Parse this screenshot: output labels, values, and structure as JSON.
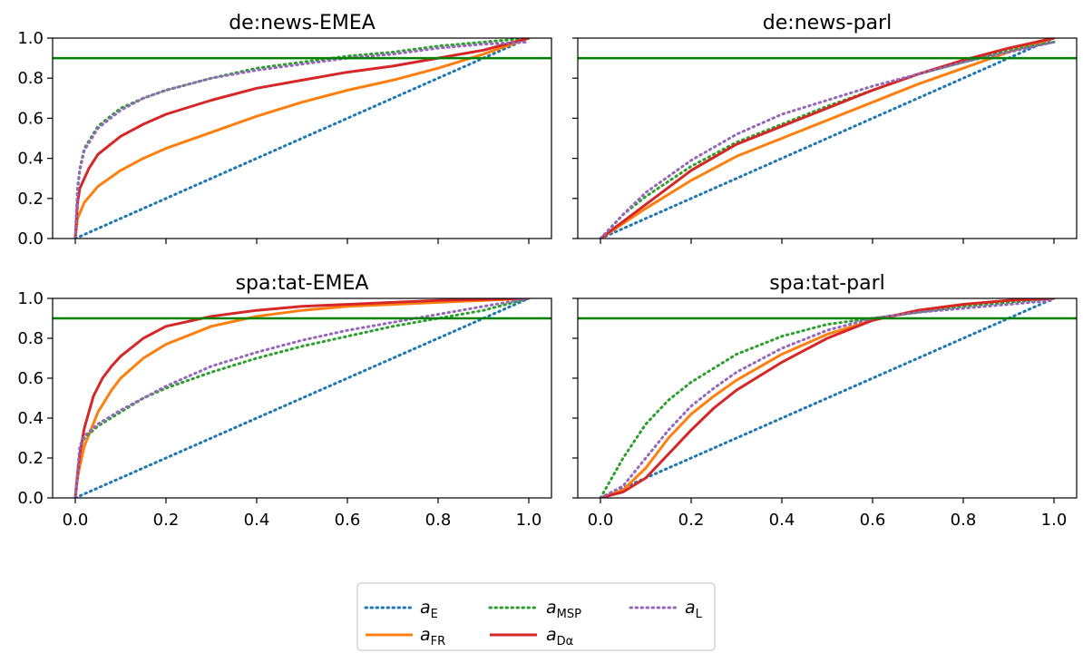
{
  "chart_data": [
    {
      "type": "line",
      "title": "de:news-EMEA",
      "xlim": [
        0,
        1
      ],
      "ylim": [
        0,
        1
      ],
      "x_ticks": [
        "0.0",
        "0.2",
        "0.4",
        "0.6",
        "0.8",
        "1.0"
      ],
      "y_ticks": [
        "0.0",
        "0.2",
        "0.4",
        "0.6",
        "0.8",
        "1.0"
      ],
      "hline": 0.9,
      "series": [
        {
          "name": "a_E",
          "style": "dotted",
          "color": "#1f77b4",
          "x": [
            0,
            1
          ],
          "y": [
            0,
            1
          ]
        },
        {
          "name": "a_FR",
          "style": "solid",
          "color": "#ff7f0e",
          "x": [
            0,
            0.005,
            0.02,
            0.05,
            0.1,
            0.15,
            0.2,
            0.3,
            0.4,
            0.5,
            0.6,
            0.7,
            0.8,
            0.9,
            0.95,
            1.0
          ],
          "y": [
            0,
            0.1,
            0.18,
            0.26,
            0.34,
            0.4,
            0.45,
            0.53,
            0.61,
            0.68,
            0.74,
            0.79,
            0.85,
            0.92,
            0.96,
            1.0
          ]
        },
        {
          "name": "a_MSP",
          "style": "dotted",
          "color": "#2ca02c",
          "x": [
            0,
            0.005,
            0.01,
            0.02,
            0.05,
            0.1,
            0.15,
            0.2,
            0.3,
            0.4,
            0.5,
            0.6,
            0.7,
            0.8,
            0.9,
            1.0
          ],
          "y": [
            0,
            0.25,
            0.35,
            0.45,
            0.56,
            0.65,
            0.7,
            0.74,
            0.8,
            0.85,
            0.88,
            0.91,
            0.93,
            0.96,
            0.98,
            1.0
          ]
        },
        {
          "name": "a_D",
          "style": "solid",
          "color": "#d62728",
          "x": [
            0,
            0.005,
            0.01,
            0.03,
            0.05,
            0.1,
            0.15,
            0.2,
            0.3,
            0.4,
            0.5,
            0.6,
            0.7,
            0.8,
            0.9,
            1.0
          ],
          "y": [
            0,
            0.18,
            0.25,
            0.35,
            0.42,
            0.51,
            0.57,
            0.62,
            0.69,
            0.75,
            0.79,
            0.83,
            0.86,
            0.9,
            0.94,
            1.0
          ]
        },
        {
          "name": "a_L",
          "style": "dotted",
          "color": "#9467bd",
          "x": [
            0,
            0.005,
            0.01,
            0.02,
            0.05,
            0.1,
            0.15,
            0.2,
            0.3,
            0.4,
            0.5,
            0.6,
            0.7,
            0.8,
            0.9,
            1.0
          ],
          "y": [
            0,
            0.24,
            0.34,
            0.44,
            0.55,
            0.64,
            0.7,
            0.74,
            0.8,
            0.84,
            0.87,
            0.9,
            0.92,
            0.95,
            0.97,
            0.98
          ]
        }
      ]
    },
    {
      "type": "line",
      "title": "de:news-parl",
      "xlim": [
        0,
        1
      ],
      "ylim": [
        0,
        1
      ],
      "x_ticks": [
        "0.0",
        "0.2",
        "0.4",
        "0.6",
        "0.8",
        "1.0"
      ],
      "y_ticks": [
        "0.0",
        "0.2",
        "0.4",
        "0.6",
        "0.8",
        "1.0"
      ],
      "hline": 0.9,
      "series": [
        {
          "name": "a_E",
          "style": "dotted",
          "color": "#1f77b4",
          "x": [
            0,
            1
          ],
          "y": [
            0,
            1
          ]
        },
        {
          "name": "a_FR",
          "style": "solid",
          "color": "#ff7f0e",
          "x": [
            0,
            0.1,
            0.2,
            0.3,
            0.4,
            0.5,
            0.6,
            0.7,
            0.8,
            0.9,
            1.0
          ],
          "y": [
            0,
            0.15,
            0.29,
            0.41,
            0.5,
            0.59,
            0.68,
            0.77,
            0.85,
            0.93,
            1.0
          ]
        },
        {
          "name": "a_MSP",
          "style": "dotted",
          "color": "#2ca02c",
          "x": [
            0,
            0.05,
            0.1,
            0.2,
            0.3,
            0.4,
            0.5,
            0.6,
            0.7,
            0.8,
            0.9,
            1.0
          ],
          "y": [
            0,
            0.12,
            0.21,
            0.36,
            0.48,
            0.57,
            0.66,
            0.74,
            0.82,
            0.88,
            0.94,
            0.98
          ]
        },
        {
          "name": "a_D",
          "style": "solid",
          "color": "#d62728",
          "x": [
            0,
            0.1,
            0.2,
            0.3,
            0.4,
            0.5,
            0.6,
            0.7,
            0.8,
            0.9,
            1.0
          ],
          "y": [
            0,
            0.17,
            0.34,
            0.47,
            0.56,
            0.65,
            0.74,
            0.82,
            0.89,
            0.95,
            1.0
          ]
        },
        {
          "name": "a_L",
          "style": "dotted",
          "color": "#9467bd",
          "x": [
            0,
            0.05,
            0.1,
            0.2,
            0.3,
            0.4,
            0.5,
            0.6,
            0.7,
            0.8,
            0.9,
            1.0
          ],
          "y": [
            0,
            0.12,
            0.23,
            0.39,
            0.52,
            0.62,
            0.69,
            0.76,
            0.82,
            0.88,
            0.93,
            0.98
          ]
        }
      ]
    },
    {
      "type": "line",
      "title": "spa:tat-EMEA",
      "xlim": [
        0,
        1
      ],
      "ylim": [
        0,
        1
      ],
      "x_ticks": [
        "0.0",
        "0.2",
        "0.4",
        "0.6",
        "0.8",
        "1.0"
      ],
      "y_ticks": [
        "0.0",
        "0.2",
        "0.4",
        "0.6",
        "0.8",
        "1.0"
      ],
      "hline": 0.9,
      "series": [
        {
          "name": "a_E",
          "style": "dotted",
          "color": "#1f77b4",
          "x": [
            0,
            1
          ],
          "y": [
            0,
            1
          ]
        },
        {
          "name": "a_FR",
          "style": "solid",
          "color": "#ff7f0e",
          "x": [
            0,
            0.005,
            0.01,
            0.02,
            0.05,
            0.08,
            0.1,
            0.15,
            0.2,
            0.3,
            0.4,
            0.5,
            0.6,
            0.7,
            0.8,
            0.9,
            1.0
          ],
          "y": [
            0,
            0.1,
            0.16,
            0.26,
            0.43,
            0.54,
            0.6,
            0.7,
            0.77,
            0.86,
            0.91,
            0.94,
            0.96,
            0.97,
            0.98,
            0.99,
            1.0
          ]
        },
        {
          "name": "a_MSP",
          "style": "dotted",
          "color": "#2ca02c",
          "x": [
            0,
            0.01,
            0.02,
            0.05,
            0.1,
            0.15,
            0.2,
            0.3,
            0.4,
            0.5,
            0.6,
            0.7,
            0.8,
            0.9,
            1.0
          ],
          "y": [
            0,
            0.25,
            0.3,
            0.36,
            0.43,
            0.5,
            0.55,
            0.63,
            0.7,
            0.76,
            0.81,
            0.86,
            0.9,
            0.94,
            1.0
          ]
        },
        {
          "name": "a_D",
          "style": "solid",
          "color": "#d62728",
          "x": [
            0,
            0.005,
            0.01,
            0.02,
            0.04,
            0.06,
            0.08,
            0.1,
            0.15,
            0.2,
            0.3,
            0.4,
            0.5,
            0.6,
            0.7,
            0.8,
            0.9,
            1.0
          ],
          "y": [
            0,
            0.12,
            0.22,
            0.35,
            0.51,
            0.6,
            0.66,
            0.71,
            0.8,
            0.86,
            0.91,
            0.94,
            0.96,
            0.97,
            0.98,
            0.99,
            0.995,
            1.0
          ]
        },
        {
          "name": "a_L",
          "style": "dotted",
          "color": "#9467bd",
          "x": [
            0,
            0.01,
            0.02,
            0.05,
            0.1,
            0.15,
            0.2,
            0.3,
            0.4,
            0.5,
            0.6,
            0.7,
            0.8,
            0.9,
            1.0
          ],
          "y": [
            0,
            0.26,
            0.31,
            0.37,
            0.44,
            0.5,
            0.56,
            0.66,
            0.73,
            0.79,
            0.84,
            0.88,
            0.92,
            0.96,
            1.0
          ]
        }
      ]
    },
    {
      "type": "line",
      "title": "spa:tat-parl",
      "xlim": [
        0,
        1
      ],
      "ylim": [
        0,
        1
      ],
      "x_ticks": [
        "0.0",
        "0.2",
        "0.4",
        "0.6",
        "0.8",
        "1.0"
      ],
      "y_ticks": [
        "0.0",
        "0.2",
        "0.4",
        "0.6",
        "0.8",
        "1.0"
      ],
      "hline": 0.9,
      "series": [
        {
          "name": "a_E",
          "style": "dotted",
          "color": "#1f77b4",
          "x": [
            0,
            1
          ],
          "y": [
            0,
            1
          ]
        },
        {
          "name": "a_FR",
          "style": "solid",
          "color": "#ff7f0e",
          "x": [
            0,
            0.05,
            0.1,
            0.15,
            0.2,
            0.25,
            0.3,
            0.4,
            0.5,
            0.6,
            0.7,
            0.8,
            0.9,
            1.0
          ],
          "y": [
            0,
            0.04,
            0.15,
            0.3,
            0.42,
            0.51,
            0.59,
            0.72,
            0.82,
            0.89,
            0.94,
            0.97,
            0.99,
            1.0
          ]
        },
        {
          "name": "a_MSP",
          "style": "dotted",
          "color": "#2ca02c",
          "x": [
            0,
            0.05,
            0.1,
            0.15,
            0.2,
            0.25,
            0.3,
            0.4,
            0.5,
            0.6,
            0.7,
            0.8,
            0.9,
            1.0
          ],
          "y": [
            0,
            0.2,
            0.37,
            0.49,
            0.58,
            0.65,
            0.72,
            0.81,
            0.87,
            0.9,
            0.93,
            0.96,
            0.98,
            1.0
          ]
        },
        {
          "name": "a_D",
          "style": "solid",
          "color": "#d62728",
          "x": [
            0,
            0.05,
            0.1,
            0.15,
            0.2,
            0.25,
            0.3,
            0.4,
            0.5,
            0.6,
            0.7,
            0.8,
            0.9,
            1.0
          ],
          "y": [
            0,
            0.03,
            0.1,
            0.22,
            0.34,
            0.45,
            0.54,
            0.68,
            0.8,
            0.89,
            0.94,
            0.97,
            0.99,
            1.0
          ]
        },
        {
          "name": "a_L",
          "style": "dotted",
          "color": "#9467bd",
          "x": [
            0,
            0.05,
            0.1,
            0.15,
            0.2,
            0.25,
            0.3,
            0.4,
            0.5,
            0.6,
            0.7,
            0.8,
            0.9,
            1.0
          ],
          "y": [
            0,
            0.06,
            0.2,
            0.34,
            0.46,
            0.55,
            0.63,
            0.75,
            0.84,
            0.9,
            0.93,
            0.95,
            0.97,
            0.99
          ]
        }
      ]
    }
  ],
  "legend": {
    "placement": "bottom-center",
    "items": [
      {
        "key": "a_E",
        "base": "a",
        "sub": "E",
        "style": "dotted",
        "color": "#1f77b4"
      },
      {
        "key": "a_FR",
        "base": "a",
        "sub": "FR",
        "style": "solid",
        "color": "#ff7f0e"
      },
      {
        "key": "a_MSP",
        "base": "a",
        "sub": "MSP",
        "style": "dotted",
        "color": "#2ca02c"
      },
      {
        "key": "a_D",
        "base": "a",
        "sub": "Dα",
        "style": "solid",
        "color": "#d62728"
      },
      {
        "key": "a_L",
        "base": "a",
        "sub": "L",
        "style": "dotted",
        "color": "#9467bd"
      }
    ]
  },
  "hline_color": "#008000"
}
